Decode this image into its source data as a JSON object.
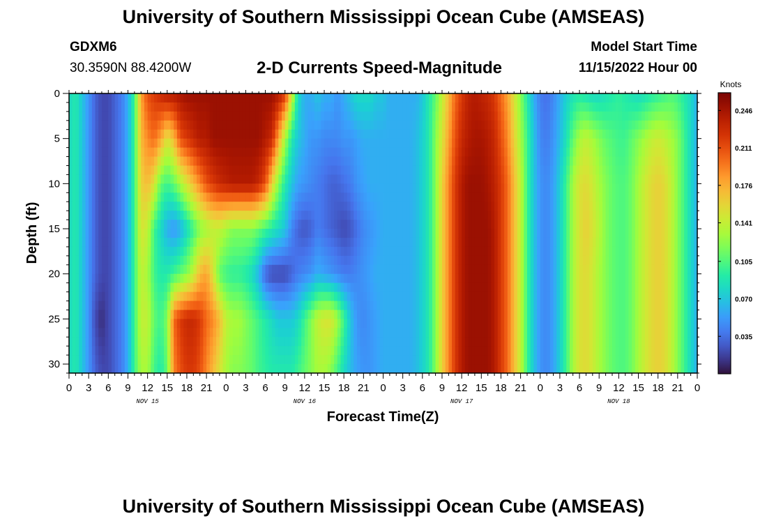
{
  "header": {
    "title": "University of Southern Mississippi Ocean Cube (AMSEAS)",
    "station_id": "GDXM6",
    "coords": "30.3590N  88.4200W",
    "subtitle": "2-D Currents Speed-Magnitude",
    "start_label": "Model Start Time",
    "start_value": "11/15/2022 Hour 00"
  },
  "footer": {
    "title": "University of Southern Mississippi Ocean Cube (AMSEAS)"
  },
  "chart_data": {
    "type": "heatmap",
    "title": "2-D Currents Speed-Magnitude",
    "xlabel": "Forecast Time(Z)",
    "ylabel": "Depth (ft)",
    "x_hours_range": [
      0,
      96
    ],
    "y_depth_range_ft": [
      0,
      31
    ],
    "x_tick_labels": [
      "0",
      "3",
      "6",
      "9",
      "12",
      "15",
      "18",
      "21",
      "0",
      "3",
      "6",
      "9",
      "12",
      "15",
      "18",
      "21",
      "0",
      "3",
      "6",
      "9",
      "12",
      "15",
      "18",
      "21",
      "0",
      "3",
      "6",
      "9",
      "12",
      "15",
      "18",
      "21",
      "0"
    ],
    "y_ticks": [
      0,
      5,
      10,
      15,
      20,
      25,
      30
    ],
    "y_tick_labels": [
      "0",
      "5",
      "10",
      "15",
      "20",
      "25",
      "30"
    ],
    "day_labels": [
      {
        "text": "NOV 15",
        "hour": 12
      },
      {
        "text": "NOV 16",
        "hour": 36
      },
      {
        "text": "NOV 17",
        "hour": 60
      },
      {
        "text": "NOV 18",
        "hour": 84
      }
    ],
    "colorbar": {
      "unit": "Knots",
      "range": [
        0.0,
        0.2625
      ],
      "ticks": [
        0.035,
        0.07,
        0.105,
        0.141,
        0.176,
        0.211,
        0.246
      ],
      "tick_labels": [
        "0.035",
        "0.070",
        "0.105",
        "0.141",
        "0.176",
        "0.211",
        "0.246"
      ]
    },
    "grid_note": "speed field in knots, rows = depth (ft), cols = forecast hour",
    "depth_levels_ft": [
      0,
      5,
      10,
      15,
      20,
      25,
      31
    ],
    "hour_knots": [
      0,
      1,
      2,
      3,
      4,
      5,
      6,
      7,
      8,
      9,
      10,
      11,
      12,
      13,
      14,
      15,
      16,
      17,
      18,
      19,
      20,
      21,
      22,
      23,
      24,
      25,
      26,
      27,
      28,
      29,
      30,
      31,
      32,
      33,
      34,
      35,
      36,
      37,
      38,
      39,
      40,
      41,
      42,
      43,
      44,
      45,
      46,
      47,
      48,
      49,
      50,
      51,
      52,
      53,
      54,
      55,
      56,
      57,
      58,
      59,
      60,
      61,
      62,
      63,
      64,
      65,
      66,
      67,
      68,
      69,
      70,
      71,
      72,
      73,
      74,
      75,
      76,
      77,
      78,
      79,
      80,
      81,
      82,
      83,
      84,
      85,
      86,
      87,
      88,
      89,
      90,
      91,
      92,
      93,
      94,
      95,
      96
    ],
    "speed_knots": [
      [
        0.08,
        0.09,
        0.07,
        0.05,
        0.03,
        0.02,
        0.02,
        0.03,
        0.04,
        0.06,
        0.1,
        0.18,
        0.21,
        0.22,
        0.23,
        0.24,
        0.24,
        0.245,
        0.25,
        0.25,
        0.25,
        0.25,
        0.25,
        0.25,
        0.25,
        0.25,
        0.25,
        0.25,
        0.25,
        0.25,
        0.25,
        0.25,
        0.24,
        0.22,
        0.15,
        0.08,
        0.06,
        0.06,
        0.07,
        0.06,
        0.06,
        0.05,
        0.06,
        0.07,
        0.08,
        0.08,
        0.08,
        0.07,
        0.07,
        0.06,
        0.06,
        0.06,
        0.06,
        0.06,
        0.07,
        0.09,
        0.11,
        0.14,
        0.17,
        0.2,
        0.22,
        0.235,
        0.24,
        0.235,
        0.23,
        0.22,
        0.2,
        0.18,
        0.15,
        0.12,
        0.09,
        0.06,
        0.04,
        0.035,
        0.045,
        0.06,
        0.075,
        0.085,
        0.09,
        0.085,
        0.08,
        0.08,
        0.085,
        0.09,
        0.095,
        0.09,
        0.085,
        0.08,
        0.085,
        0.09,
        0.095,
        0.1,
        0.105,
        0.1,
        0.09,
        0.08,
        0.06
      ],
      [
        0.08,
        0.09,
        0.07,
        0.05,
        0.03,
        0.02,
        0.02,
        0.03,
        0.04,
        0.06,
        0.1,
        0.17,
        0.19,
        0.2,
        0.18,
        0.15,
        0.17,
        0.21,
        0.22,
        0.23,
        0.24,
        0.24,
        0.25,
        0.25,
        0.25,
        0.25,
        0.25,
        0.25,
        0.25,
        0.25,
        0.24,
        0.23,
        0.18,
        0.13,
        0.09,
        0.07,
        0.06,
        0.05,
        0.05,
        0.045,
        0.045,
        0.045,
        0.05,
        0.05,
        0.055,
        0.06,
        0.06,
        0.06,
        0.06,
        0.06,
        0.06,
        0.06,
        0.06,
        0.065,
        0.075,
        0.09,
        0.12,
        0.15,
        0.18,
        0.21,
        0.23,
        0.24,
        0.245,
        0.245,
        0.24,
        0.23,
        0.21,
        0.19,
        0.16,
        0.13,
        0.1,
        0.07,
        0.045,
        0.04,
        0.05,
        0.065,
        0.085,
        0.11,
        0.13,
        0.14,
        0.13,
        0.12,
        0.11,
        0.105,
        0.1,
        0.1,
        0.11,
        0.12,
        0.13,
        0.14,
        0.145,
        0.14,
        0.13,
        0.12,
        0.1,
        0.08,
        0.06
      ],
      [
        0.08,
        0.09,
        0.07,
        0.05,
        0.03,
        0.02,
        0.02,
        0.03,
        0.04,
        0.06,
        0.1,
        0.16,
        0.17,
        0.15,
        0.11,
        0.1,
        0.11,
        0.13,
        0.15,
        0.17,
        0.19,
        0.21,
        0.22,
        0.23,
        0.235,
        0.24,
        0.24,
        0.24,
        0.24,
        0.23,
        0.21,
        0.16,
        0.12,
        0.09,
        0.07,
        0.055,
        0.05,
        0.045,
        0.04,
        0.035,
        0.03,
        0.03,
        0.035,
        0.04,
        0.05,
        0.055,
        0.06,
        0.06,
        0.06,
        0.06,
        0.06,
        0.06,
        0.06,
        0.065,
        0.075,
        0.09,
        0.12,
        0.16,
        0.19,
        0.22,
        0.24,
        0.25,
        0.25,
        0.25,
        0.245,
        0.235,
        0.22,
        0.2,
        0.17,
        0.14,
        0.1,
        0.07,
        0.05,
        0.045,
        0.055,
        0.075,
        0.1,
        0.13,
        0.15,
        0.155,
        0.145,
        0.13,
        0.12,
        0.11,
        0.105,
        0.105,
        0.115,
        0.13,
        0.145,
        0.155,
        0.16,
        0.155,
        0.14,
        0.12,
        0.1,
        0.08,
        0.06
      ],
      [
        0.08,
        0.09,
        0.07,
        0.05,
        0.03,
        0.02,
        0.02,
        0.03,
        0.04,
        0.06,
        0.1,
        0.15,
        0.14,
        0.1,
        0.08,
        0.06,
        0.05,
        0.06,
        0.08,
        0.1,
        0.12,
        0.13,
        0.14,
        0.14,
        0.13,
        0.12,
        0.12,
        0.12,
        0.12,
        0.11,
        0.1,
        0.09,
        0.08,
        0.07,
        0.045,
        0.03,
        0.025,
        0.03,
        0.04,
        0.035,
        0.03,
        0.025,
        0.02,
        0.025,
        0.035,
        0.045,
        0.05,
        0.055,
        0.06,
        0.06,
        0.06,
        0.06,
        0.06,
        0.065,
        0.075,
        0.09,
        0.12,
        0.16,
        0.19,
        0.22,
        0.24,
        0.25,
        0.25,
        0.25,
        0.25,
        0.24,
        0.22,
        0.2,
        0.17,
        0.14,
        0.1,
        0.07,
        0.05,
        0.045,
        0.055,
        0.075,
        0.1,
        0.13,
        0.15,
        0.16,
        0.15,
        0.135,
        0.12,
        0.11,
        0.105,
        0.105,
        0.115,
        0.13,
        0.145,
        0.155,
        0.16,
        0.155,
        0.14,
        0.12,
        0.1,
        0.08,
        0.06
      ],
      [
        0.08,
        0.09,
        0.07,
        0.05,
        0.03,
        0.02,
        0.02,
        0.03,
        0.04,
        0.06,
        0.1,
        0.14,
        0.13,
        0.1,
        0.09,
        0.09,
        0.1,
        0.11,
        0.12,
        0.14,
        0.17,
        0.18,
        0.15,
        0.11,
        0.1,
        0.095,
        0.095,
        0.09,
        0.08,
        0.06,
        0.03,
        0.02,
        0.02,
        0.02,
        0.03,
        0.04,
        0.045,
        0.05,
        0.06,
        0.055,
        0.05,
        0.045,
        0.04,
        0.04,
        0.045,
        0.05,
        0.055,
        0.06,
        0.06,
        0.06,
        0.06,
        0.06,
        0.06,
        0.065,
        0.075,
        0.09,
        0.12,
        0.16,
        0.19,
        0.22,
        0.24,
        0.25,
        0.25,
        0.25,
        0.25,
        0.24,
        0.22,
        0.2,
        0.17,
        0.14,
        0.1,
        0.07,
        0.05,
        0.045,
        0.055,
        0.075,
        0.1,
        0.13,
        0.15,
        0.155,
        0.145,
        0.13,
        0.12,
        0.11,
        0.105,
        0.105,
        0.115,
        0.13,
        0.145,
        0.155,
        0.16,
        0.155,
        0.14,
        0.12,
        0.1,
        0.08,
        0.06
      ],
      [
        0.08,
        0.09,
        0.07,
        0.05,
        0.02,
        0.01,
        0.02,
        0.03,
        0.04,
        0.06,
        0.1,
        0.14,
        0.14,
        0.11,
        0.1,
        0.12,
        0.2,
        0.22,
        0.23,
        0.23,
        0.22,
        0.2,
        0.19,
        0.17,
        0.14,
        0.13,
        0.13,
        0.12,
        0.11,
        0.1,
        0.09,
        0.08,
        0.07,
        0.07,
        0.07,
        0.08,
        0.1,
        0.12,
        0.14,
        0.15,
        0.15,
        0.13,
        0.1,
        0.07,
        0.05,
        0.045,
        0.05,
        0.055,
        0.06,
        0.06,
        0.06,
        0.06,
        0.06,
        0.065,
        0.075,
        0.09,
        0.12,
        0.16,
        0.19,
        0.22,
        0.24,
        0.25,
        0.25,
        0.25,
        0.25,
        0.24,
        0.22,
        0.2,
        0.17,
        0.14,
        0.1,
        0.07,
        0.05,
        0.045,
        0.055,
        0.075,
        0.1,
        0.13,
        0.15,
        0.155,
        0.145,
        0.13,
        0.12,
        0.11,
        0.105,
        0.105,
        0.115,
        0.13,
        0.145,
        0.155,
        0.16,
        0.155,
        0.14,
        0.12,
        0.1,
        0.08,
        0.06
      ],
      [
        0.08,
        0.09,
        0.07,
        0.05,
        0.03,
        0.02,
        0.02,
        0.03,
        0.04,
        0.06,
        0.1,
        0.13,
        0.13,
        0.1,
        0.09,
        0.11,
        0.19,
        0.21,
        0.22,
        0.22,
        0.21,
        0.19,
        0.17,
        0.15,
        0.13,
        0.12,
        0.12,
        0.115,
        0.11,
        0.1,
        0.095,
        0.09,
        0.09,
        0.09,
        0.09,
        0.1,
        0.11,
        0.12,
        0.13,
        0.13,
        0.12,
        0.1,
        0.08,
        0.065,
        0.055,
        0.05,
        0.05,
        0.055,
        0.06,
        0.06,
        0.06,
        0.06,
        0.06,
        0.065,
        0.075,
        0.09,
        0.12,
        0.16,
        0.19,
        0.22,
        0.24,
        0.25,
        0.25,
        0.25,
        0.25,
        0.24,
        0.22,
        0.2,
        0.17,
        0.14,
        0.1,
        0.07,
        0.05,
        0.045,
        0.055,
        0.075,
        0.1,
        0.13,
        0.15,
        0.155,
        0.145,
        0.13,
        0.12,
        0.11,
        0.105,
        0.105,
        0.115,
        0.13,
        0.145,
        0.155,
        0.16,
        0.155,
        0.14,
        0.12,
        0.1,
        0.08,
        0.06
      ]
    ]
  }
}
